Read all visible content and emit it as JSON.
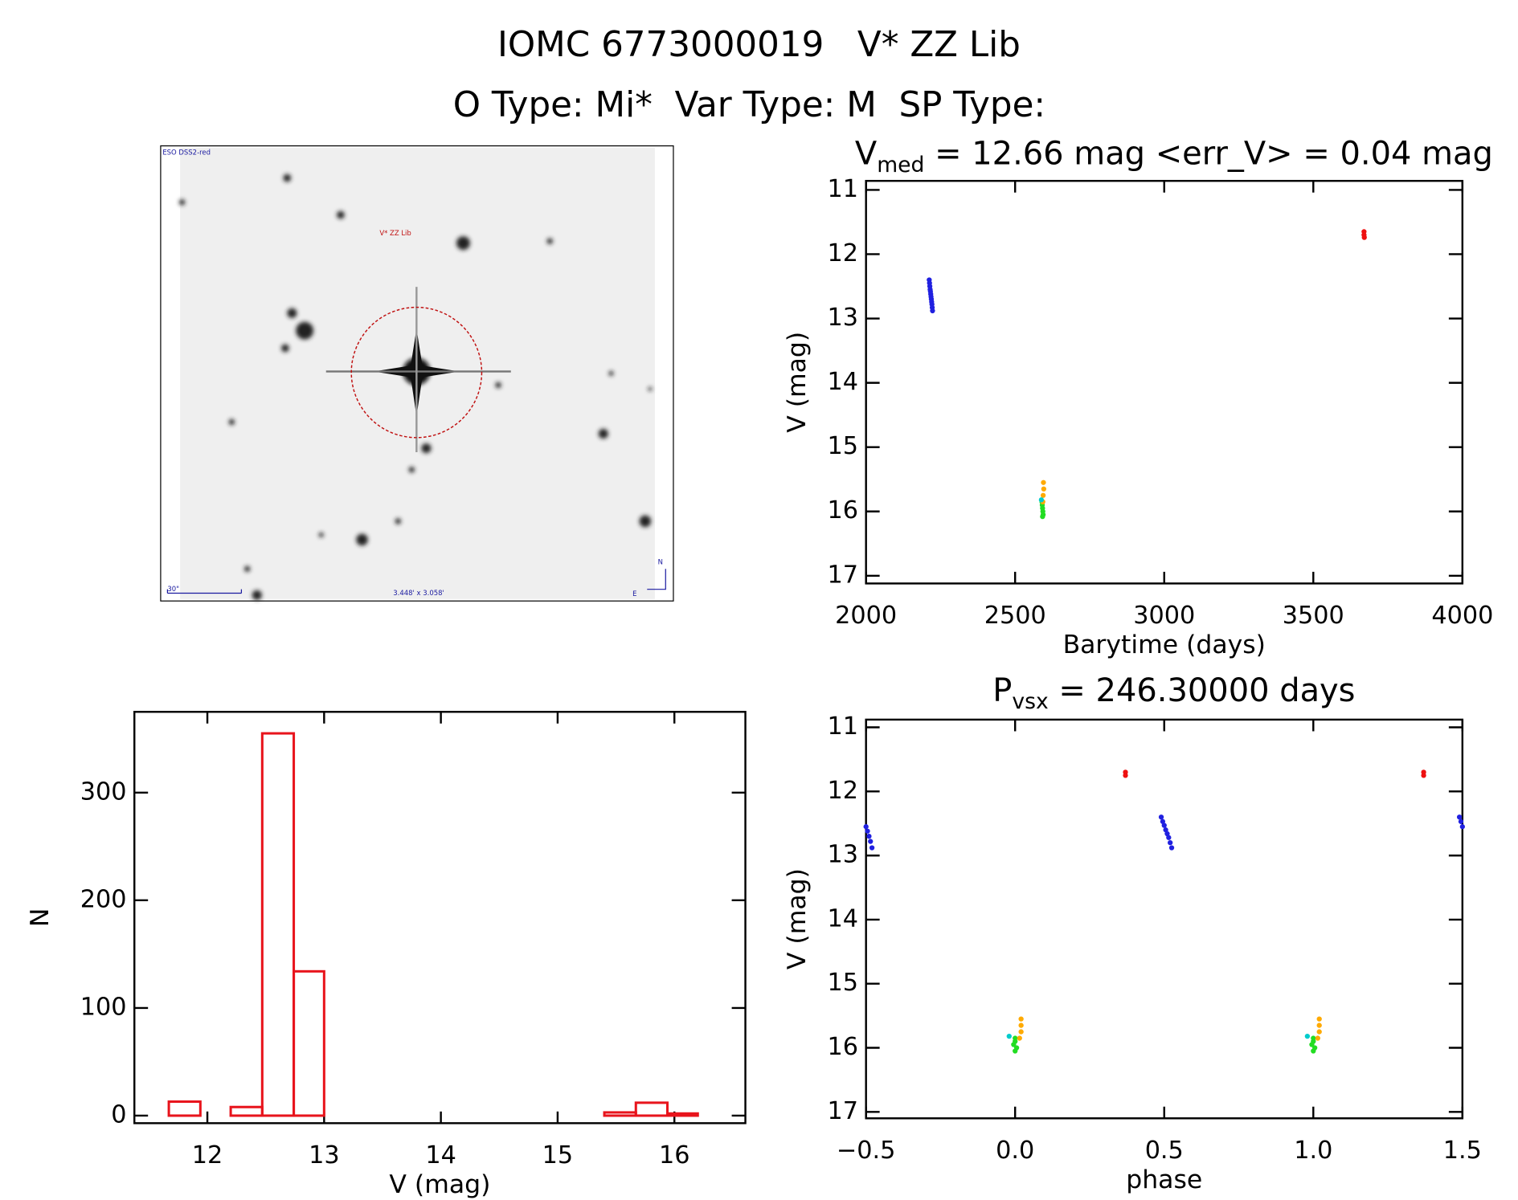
{
  "header": {
    "title": "IOMC 6773000019   V* ZZ Lib",
    "subtitle": "O Type: Mi*  Var Type: M  SP Type:"
  },
  "image": {
    "survey": "ESO DSS2-red",
    "target": "V* ZZ Lib",
    "scale": "30\"",
    "size": "3.448' x 3.058'",
    "north": "N",
    "east": "E"
  },
  "chart_data": [
    {
      "type": "histogram",
      "xlabel": "V (mag)",
      "ylabel": "N",
      "color": "#e8141c",
      "bins": [
        11.67,
        11.94,
        12.2,
        12.47,
        12.74,
        13.0,
        13.27,
        13.54,
        13.8,
        14.07,
        14.34,
        14.6,
        14.87,
        15.14,
        15.4,
        15.67,
        15.94,
        16.2
      ],
      "values": [
        13,
        0,
        8,
        355,
        134,
        0,
        0,
        0,
        0,
        0,
        0,
        0,
        0,
        0,
        3,
        12,
        2
      ],
      "xlim": [
        11.375,
        16.608
      ],
      "ylim": [
        -7,
        375
      ],
      "xticks": [
        12,
        13,
        14,
        15,
        16
      ],
      "yticks": [
        0,
        100,
        200,
        300
      ]
    },
    {
      "type": "scatter",
      "title": [
        "V",
        "med",
        " = 12.66 mag <err_V> = 0.04 mag"
      ],
      "xlabel": "Barytime (days)",
      "ylabel": "V (mag)",
      "xlim": [
        2000,
        4000
      ],
      "ylim": [
        10.86,
        17.12
      ],
      "y_inverted": true,
      "xticks": [
        2000,
        2500,
        3000,
        3500,
        4000
      ],
      "yticks": [
        11,
        12,
        13,
        14,
        15,
        16,
        17
      ],
      "series": [
        {
          "color": "#2020e0",
          "x": [
            2212,
            2213,
            2214,
            2215,
            2216,
            2217,
            2218,
            2219,
            2220,
            2221,
            2222,
            2223
          ],
          "values": [
            12.4,
            12.45,
            12.5,
            12.55,
            12.58,
            12.62,
            12.66,
            12.7,
            12.74,
            12.78,
            12.83,
            12.88
          ]
        },
        {
          "color": "#22dd22",
          "x": [
            2590,
            2591,
            2592,
            2593,
            2594,
            2592
          ],
          "values": [
            15.85,
            15.9,
            15.95,
            16.0,
            16.05,
            16.08
          ]
        },
        {
          "color": "#ffaa00",
          "x": [
            2595,
            2596,
            2594,
            2593
          ],
          "values": [
            15.55,
            15.65,
            15.75,
            15.85
          ]
        },
        {
          "color": "#00cccc",
          "x": [
            2588
          ],
          "values": [
            15.82
          ]
        },
        {
          "color": "#ee1111",
          "x": [
            3670,
            3670,
            3671
          ],
          "values": [
            11.65,
            11.7,
            11.74
          ]
        }
      ]
    },
    {
      "type": "scatter",
      "title": [
        "P",
        "vsx",
        " = 246.30000 days"
      ],
      "xlabel": "phase",
      "ylabel": "V (mag)",
      "xlim": [
        -0.5,
        1.5
      ],
      "ylim": [
        10.88,
        17.1
      ],
      "y_inverted": true,
      "xticks": [
        {
          "value": -0.5,
          "label": "−0.5"
        },
        {
          "value": 0,
          "label": "0.0"
        },
        0.5,
        {
          "value": 1,
          "label": "1.0"
        },
        1.5
      ],
      "yticks": [
        11,
        12,
        13,
        14,
        15,
        16,
        17
      ],
      "series": [
        {
          "color": "#2020e0",
          "x": [
            0.49,
            0.495,
            0.5,
            0.505,
            0.51,
            0.515,
            0.52,
            0.525,
            -0.5,
            -0.495,
            -0.49,
            -0.485,
            -0.48,
            1.49,
            1.495,
            1.5
          ],
          "values": [
            12.4,
            12.47,
            12.53,
            12.6,
            12.66,
            12.72,
            12.8,
            12.88,
            12.55,
            12.62,
            12.7,
            12.78,
            12.88,
            12.4,
            12.47,
            12.55
          ]
        },
        {
          "color": "#22dd22",
          "x": [
            0.0,
            0.0,
            -0.005,
            0.005,
            0.0,
            1.0,
            1.0,
            0.995,
            1.005,
            1.0
          ],
          "values": [
            15.85,
            15.9,
            15.95,
            16.0,
            16.05,
            15.85,
            15.9,
            15.95,
            16.0,
            16.05
          ]
        },
        {
          "color": "#ffaa00",
          "x": [
            0.02,
            0.02,
            0.02,
            0.015,
            1.02,
            1.02,
            1.02,
            1.015
          ],
          "values": [
            15.55,
            15.65,
            15.75,
            15.85,
            15.55,
            15.65,
            15.75,
            15.85
          ]
        },
        {
          "color": "#00cccc",
          "x": [
            -0.02,
            0.98
          ],
          "values": [
            15.82,
            15.82
          ]
        },
        {
          "color": "#ee1111",
          "x": [
            0.37,
            0.37,
            1.37,
            1.37
          ],
          "values": [
            11.7,
            11.75,
            11.7,
            11.75
          ]
        }
      ]
    }
  ]
}
